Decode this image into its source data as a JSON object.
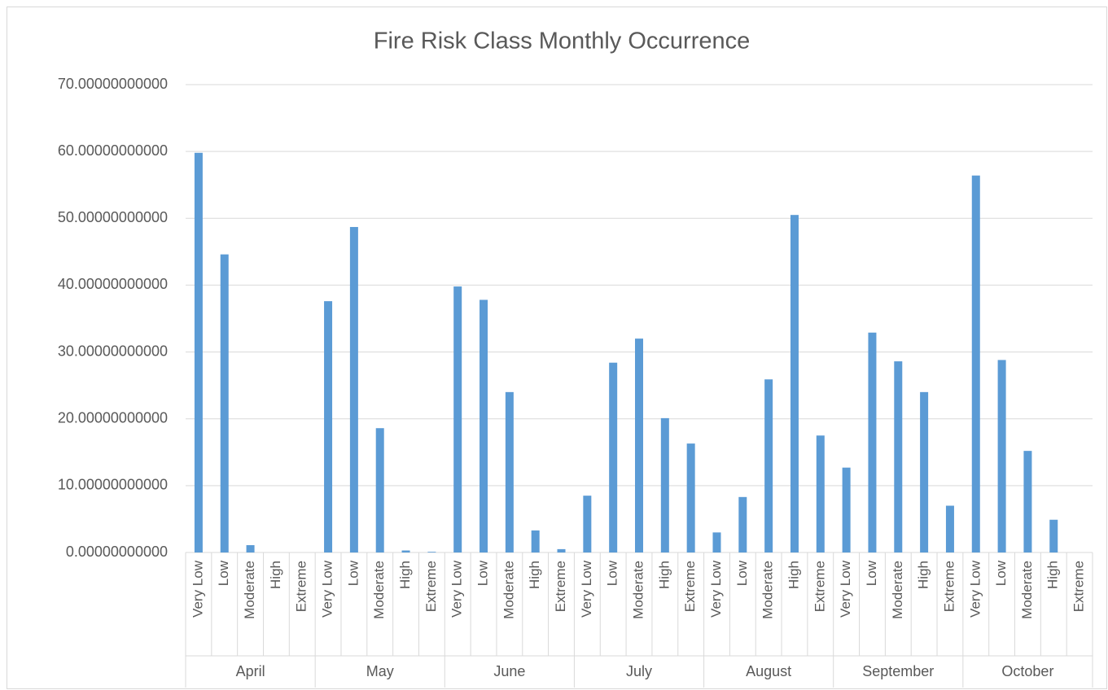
{
  "chart_data": {
    "type": "bar",
    "title": "Fire Risk Class Monthly Occurrence",
    "categories": [
      "Very Low",
      "Low",
      "Moderate",
      "High",
      "Extreme",
      "Very Low",
      "Low",
      "Moderate",
      "High",
      "Extreme",
      "Very Low",
      "Low",
      "Moderate",
      "High",
      "Extreme",
      "Very Low",
      "Low",
      "Moderate",
      "High",
      "Extreme",
      "Very Low",
      "Low",
      "Moderate",
      "High",
      "Extreme",
      "Very Low",
      "Low",
      "Moderate",
      "High",
      "Extreme",
      "Very Low",
      "Low",
      "Moderate",
      "High",
      "Extreme"
    ],
    "groups": [
      "April",
      "May",
      "June",
      "July",
      "August",
      "September",
      "October"
    ],
    "values": [
      59.8,
      44.6,
      1.1,
      0,
      0,
      37.6,
      48.7,
      18.6,
      0.3,
      0.1,
      39.8,
      37.8,
      24.0,
      3.3,
      0.5,
      8.5,
      28.4,
      32.0,
      20.1,
      16.3,
      3.0,
      8.3,
      25.9,
      50.5,
      17.5,
      12.7,
      32.9,
      28.6,
      24.0,
      7.0,
      56.4,
      28.8,
      15.2,
      4.9,
      0
    ],
    "color": "#5b9bd5",
    "ylim": [
      0,
      70
    ],
    "yticks": [
      {
        "value": 0,
        "label": "0.00000000000"
      },
      {
        "value": 10,
        "label": "10.00000000000"
      },
      {
        "value": 20,
        "label": "20.00000000000"
      },
      {
        "value": 30,
        "label": "30.00000000000"
      },
      {
        "value": 40,
        "label": "40.00000000000"
      },
      {
        "value": 50,
        "label": "50.00000000000"
      },
      {
        "value": 60,
        "label": "60.00000000000"
      },
      {
        "value": 70,
        "label": "70.00000000000"
      }
    ],
    "grid": true
  }
}
